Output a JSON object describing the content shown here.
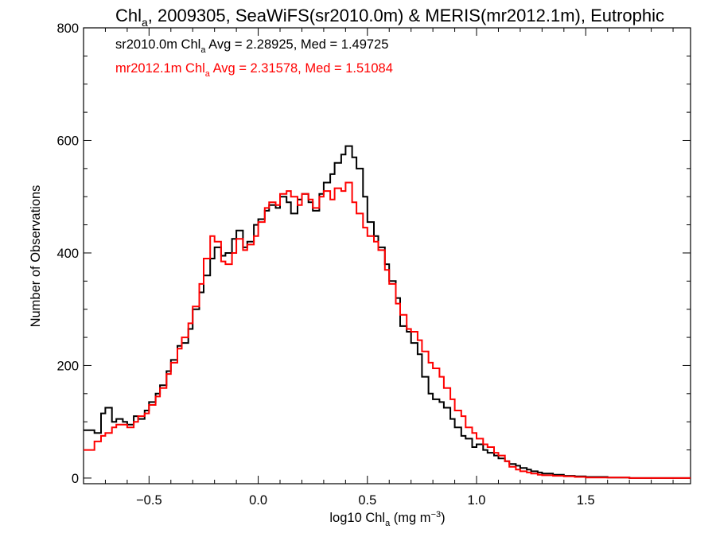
{
  "chart_data": {
    "type": "line",
    "title": {
      "pre": "Chl",
      "sub": "a",
      "post": ", 2009305, SeaWiFS(sr2010.0m) & MERIS(mr2012.1m), Eutrophic"
    },
    "xlabel": {
      "pre": "log10 Chl",
      "sub": "a",
      "post": " (mg m",
      "sup": "−3",
      "end": ")"
    },
    "ylabel": "Number of Observations",
    "xlim": [
      -0.8,
      1.98
    ],
    "ylim": [
      -10,
      800
    ],
    "xticks": [
      -0.5,
      0.0,
      0.5,
      1.0,
      1.5
    ],
    "xtick_labels": [
      "−0.5",
      "0.0",
      "0.5",
      "1.0",
      "1.5"
    ],
    "yticks": [
      0,
      200,
      400,
      600,
      800
    ],
    "ytick_labels": [
      "0",
      "200",
      "400",
      "600",
      "800"
    ],
    "grid": false,
    "step": true,
    "series": [
      {
        "name": "sr2010.0m",
        "color": "#000000",
        "annotation": {
          "pre": "sr2010.0m Chl",
          "sub": "a",
          "post": " Avg = 2.28925, Med = 1.49725"
        },
        "points": [
          [
            -0.8,
            85
          ],
          [
            -0.75,
            80
          ],
          [
            -0.72,
            115
          ],
          [
            -0.7,
            125
          ],
          [
            -0.67,
            100
          ],
          [
            -0.65,
            105
          ],
          [
            -0.62,
            100
          ],
          [
            -0.6,
            95
          ],
          [
            -0.57,
            110
          ],
          [
            -0.55,
            105
          ],
          [
            -0.52,
            120
          ],
          [
            -0.5,
            135
          ],
          [
            -0.47,
            150
          ],
          [
            -0.45,
            165
          ],
          [
            -0.42,
            190
          ],
          [
            -0.4,
            210
          ],
          [
            -0.37,
            235
          ],
          [
            -0.35,
            240
          ],
          [
            -0.32,
            265
          ],
          [
            -0.3,
            300
          ],
          [
            -0.27,
            330
          ],
          [
            -0.25,
            360
          ],
          [
            -0.22,
            390
          ],
          [
            -0.2,
            410
          ],
          [
            -0.17,
            395
          ],
          [
            -0.15,
            400
          ],
          [
            -0.12,
            425
          ],
          [
            -0.1,
            440
          ],
          [
            -0.07,
            410
          ],
          [
            -0.05,
            420
          ],
          [
            -0.02,
            450
          ],
          [
            0.0,
            460
          ],
          [
            0.03,
            475
          ],
          [
            0.05,
            485
          ],
          [
            0.08,
            480
          ],
          [
            0.1,
            500
          ],
          [
            0.13,
            490
          ],
          [
            0.15,
            470
          ],
          [
            0.18,
            495
          ],
          [
            0.2,
            505
          ],
          [
            0.23,
            490
          ],
          [
            0.25,
            475
          ],
          [
            0.28,
            505
          ],
          [
            0.3,
            525
          ],
          [
            0.33,
            540
          ],
          [
            0.35,
            560
          ],
          [
            0.38,
            575
          ],
          [
            0.4,
            590
          ],
          [
            0.43,
            570
          ],
          [
            0.45,
            550
          ],
          [
            0.48,
            500
          ],
          [
            0.5,
            455
          ],
          [
            0.53,
            430
          ],
          [
            0.55,
            410
          ],
          [
            0.58,
            380
          ],
          [
            0.6,
            350
          ],
          [
            0.63,
            320
          ],
          [
            0.65,
            270
          ],
          [
            0.68,
            260
          ],
          [
            0.7,
            240
          ],
          [
            0.73,
            220
          ],
          [
            0.75,
            180
          ],
          [
            0.78,
            150
          ],
          [
            0.8,
            140
          ],
          [
            0.83,
            135
          ],
          [
            0.85,
            125
          ],
          [
            0.88,
            105
          ],
          [
            0.9,
            90
          ],
          [
            0.93,
            75
          ],
          [
            0.95,
            70
          ],
          [
            0.98,
            55
          ],
          [
            1.0,
            60
          ],
          [
            1.03,
            50
          ],
          [
            1.05,
            45
          ],
          [
            1.08,
            40
          ],
          [
            1.1,
            35
          ],
          [
            1.13,
            30
          ],
          [
            1.15,
            25
          ],
          [
            1.18,
            22
          ],
          [
            1.2,
            18
          ],
          [
            1.23,
            15
          ],
          [
            1.25,
            12
          ],
          [
            1.28,
            10
          ],
          [
            1.3,
            8
          ],
          [
            1.35,
            6
          ],
          [
            1.4,
            4
          ],
          [
            1.45,
            3
          ],
          [
            1.5,
            2
          ],
          [
            1.6,
            1
          ],
          [
            1.7,
            0
          ],
          [
            1.8,
            0
          ],
          [
            1.98,
            0
          ]
        ]
      },
      {
        "name": "mr2012.1m",
        "color": "#ff0000",
        "annotation": {
          "pre": "mr2012.1m Chl",
          "sub": "a",
          "post": " Avg = 2.31578, Med = 1.51084"
        },
        "points": [
          [
            -0.8,
            50
          ],
          [
            -0.75,
            65
          ],
          [
            -0.72,
            75
          ],
          [
            -0.7,
            80
          ],
          [
            -0.67,
            90
          ],
          [
            -0.65,
            95
          ],
          [
            -0.62,
            95
          ],
          [
            -0.6,
            90
          ],
          [
            -0.57,
            100
          ],
          [
            -0.55,
            110
          ],
          [
            -0.52,
            115
          ],
          [
            -0.5,
            130
          ],
          [
            -0.47,
            145
          ],
          [
            -0.45,
            160
          ],
          [
            -0.42,
            185
          ],
          [
            -0.4,
            205
          ],
          [
            -0.37,
            230
          ],
          [
            -0.35,
            250
          ],
          [
            -0.32,
            275
          ],
          [
            -0.3,
            305
          ],
          [
            -0.27,
            345
          ],
          [
            -0.25,
            390
          ],
          [
            -0.22,
            430
          ],
          [
            -0.2,
            420
          ],
          [
            -0.17,
            385
          ],
          [
            -0.15,
            380
          ],
          [
            -0.12,
            400
          ],
          [
            -0.1,
            425
          ],
          [
            -0.07,
            405
          ],
          [
            -0.05,
            415
          ],
          [
            -0.02,
            430
          ],
          [
            0.0,
            455
          ],
          [
            0.03,
            480
          ],
          [
            0.05,
            490
          ],
          [
            0.08,
            485
          ],
          [
            0.1,
            505
          ],
          [
            0.13,
            510
          ],
          [
            0.15,
            500
          ],
          [
            0.18,
            485
          ],
          [
            0.2,
            505
          ],
          [
            0.23,
            495
          ],
          [
            0.25,
            480
          ],
          [
            0.28,
            500
          ],
          [
            0.3,
            510
          ],
          [
            0.33,
            495
          ],
          [
            0.35,
            515
          ],
          [
            0.38,
            510
          ],
          [
            0.4,
            525
          ],
          [
            0.43,
            490
          ],
          [
            0.45,
            470
          ],
          [
            0.48,
            445
          ],
          [
            0.5,
            430
          ],
          [
            0.53,
            420
          ],
          [
            0.55,
            405
          ],
          [
            0.58,
            370
          ],
          [
            0.6,
            345
          ],
          [
            0.63,
            310
          ],
          [
            0.65,
            290
          ],
          [
            0.68,
            265
          ],
          [
            0.7,
            260
          ],
          [
            0.73,
            245
          ],
          [
            0.75,
            225
          ],
          [
            0.78,
            205
          ],
          [
            0.8,
            195
          ],
          [
            0.83,
            180
          ],
          [
            0.85,
            160
          ],
          [
            0.88,
            140
          ],
          [
            0.9,
            120
          ],
          [
            0.93,
            110
          ],
          [
            0.95,
            90
          ],
          [
            0.98,
            80
          ],
          [
            1.0,
            70
          ],
          [
            1.03,
            60
          ],
          [
            1.05,
            55
          ],
          [
            1.08,
            45
          ],
          [
            1.1,
            40
          ],
          [
            1.13,
            30
          ],
          [
            1.15,
            20
          ],
          [
            1.18,
            15
          ],
          [
            1.2,
            12
          ],
          [
            1.23,
            10
          ],
          [
            1.25,
            8
          ],
          [
            1.28,
            6
          ],
          [
            1.3,
            5
          ],
          [
            1.35,
            4
          ],
          [
            1.4,
            3
          ],
          [
            1.45,
            2
          ],
          [
            1.5,
            1
          ],
          [
            1.6,
            1
          ],
          [
            1.7,
            0
          ],
          [
            1.8,
            0
          ],
          [
            1.98,
            0
          ]
        ]
      }
    ]
  }
}
